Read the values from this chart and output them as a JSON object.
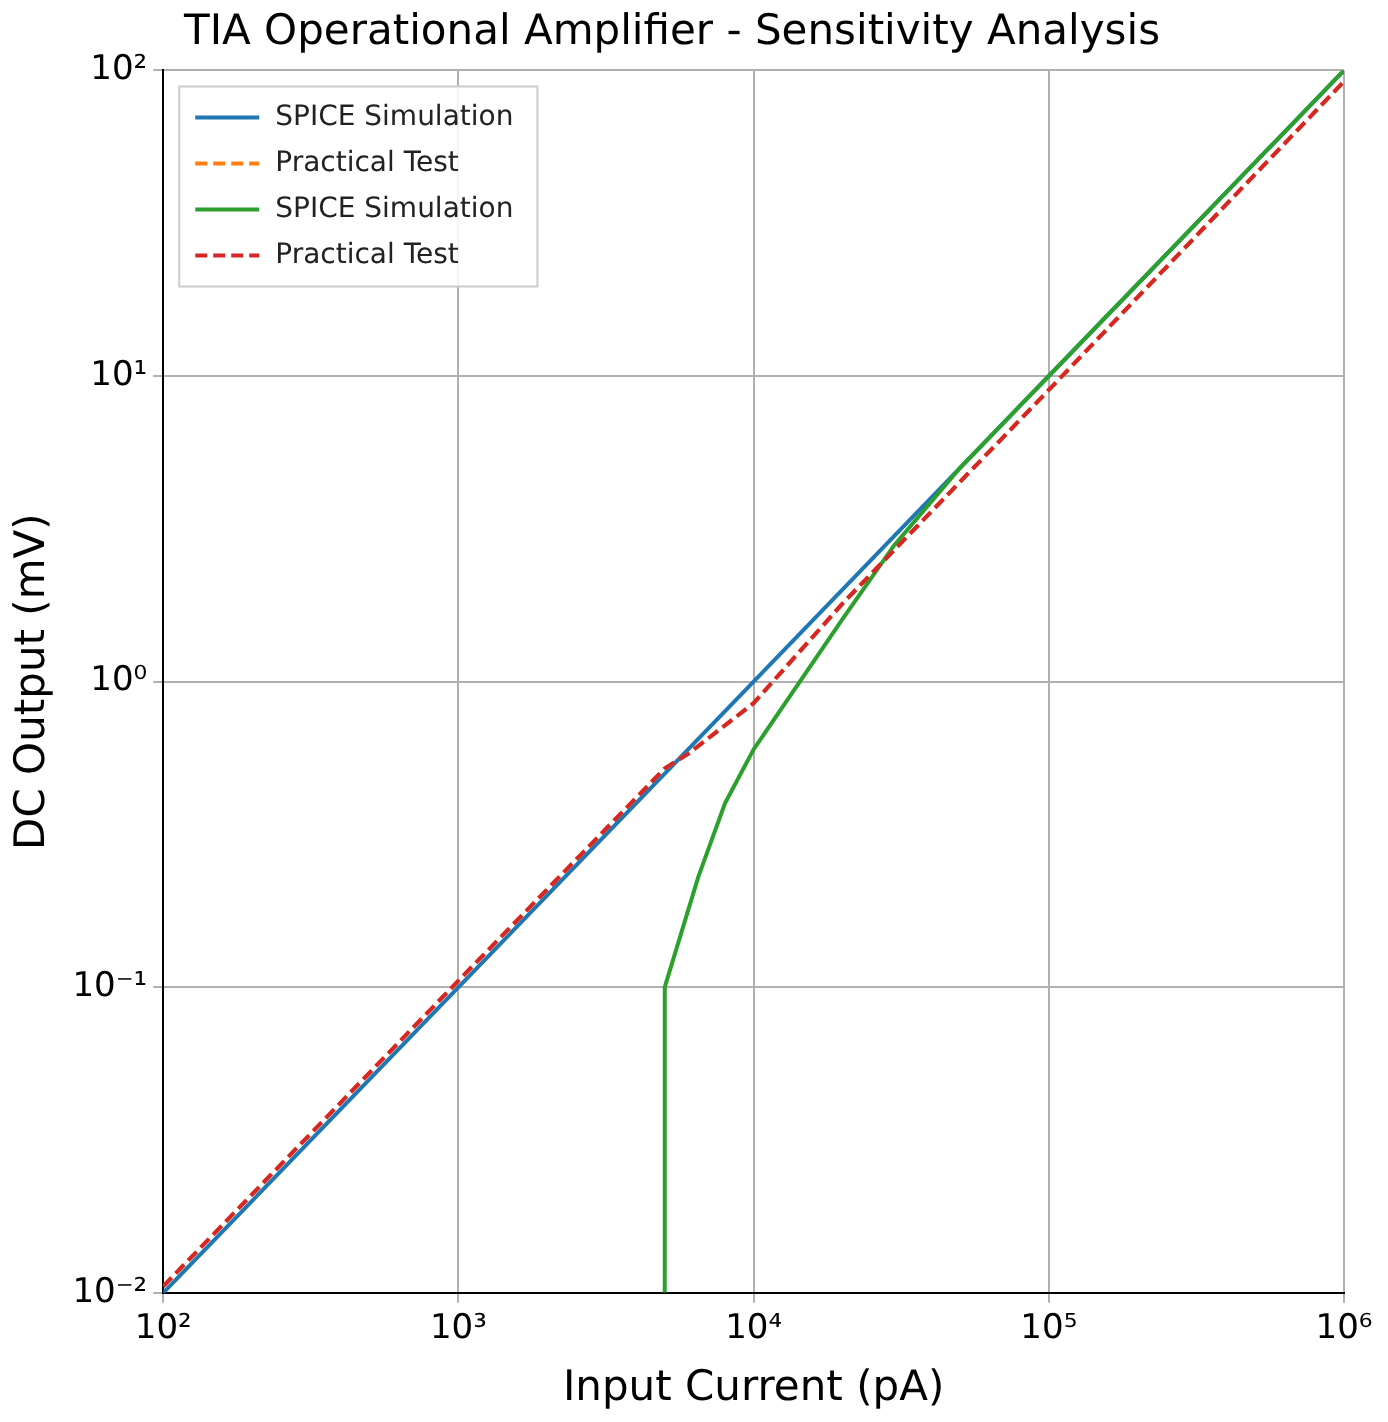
{
  "chart_data": {
    "type": "line",
    "title": "TIA Operational Amplifier - Sensitivity Analysis",
    "xlabel": "Input Current (pA)",
    "ylabel": "DC Output (mV)",
    "log": "xy",
    "grid": true,
    "legend": "top left",
    "marker": "none",
    "xlim": [
      100,
      1000000
    ],
    "ylim": [
      0.01,
      100
    ],
    "xticks": [
      {
        "value": 100,
        "label": "10²"
      },
      {
        "value": 1000,
        "label": "10³"
      },
      {
        "value": 10000,
        "label": "10⁴"
      },
      {
        "value": 100000,
        "label": "10⁵"
      },
      {
        "value": 1000000,
        "label": "10⁶"
      }
    ],
    "yticks": [
      {
        "value": 0.01,
        "label": "10⁻²"
      },
      {
        "value": 0.1,
        "label": "10⁻¹"
      },
      {
        "value": 1,
        "label": "10⁰"
      },
      {
        "value": 10,
        "label": "10¹"
      },
      {
        "value": 100,
        "label": "10²"
      }
    ],
    "series": [
      {
        "name": "SPICE Simulation",
        "color": "#1f77b4",
        "line_style": "solid",
        "x": [
          100,
          1000000
        ],
        "values": [
          0.01,
          100
        ]
      },
      {
        "name": "Practical Test",
        "color": "#ff7f0e",
        "line_style": "dashed",
        "x": [
          100,
          1000,
          5000,
          6000,
          10000,
          20000,
          30000,
          100000,
          1000000
        ],
        "values": [
          0.0105,
          0.105,
          0.52,
          0.58,
          0.85,
          1.8,
          2.7,
          9,
          92
        ]
      },
      {
        "name": "SPICE Simulation",
        "color": "#2ca02c",
        "line_style": "solid",
        "x": [
          5000,
          5000,
          6500,
          8000,
          10000,
          20000,
          30000,
          50000,
          100000,
          1000000
        ],
        "values": [
          0.01,
          0.1,
          0.23,
          0.4,
          0.6,
          1.6,
          2.8,
          5,
          10,
          100
        ]
      },
      {
        "name": "Practical Test",
        "color": "#d62728",
        "line_style": "dashed",
        "x": [
          100,
          1000,
          5000,
          6000,
          10000,
          20000,
          30000,
          100000,
          1000000
        ],
        "values": [
          0.0105,
          0.105,
          0.52,
          0.58,
          0.85,
          1.8,
          2.7,
          9,
          92
        ]
      }
    ]
  }
}
